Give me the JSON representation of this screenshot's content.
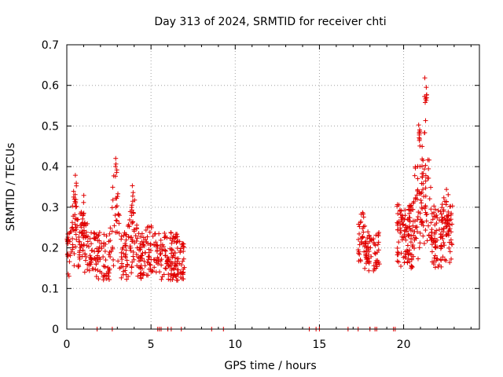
{
  "chart_data": {
    "type": "scatter",
    "title": "Day 313 of 2024, SRMTID for receiver chti",
    "xlabel": "GPS time / hours",
    "ylabel": "SRMTID / TECUs",
    "xlim": [
      0,
      24.5
    ],
    "ylim": [
      0,
      0.7
    ],
    "xticks": [
      0,
      5,
      10,
      15,
      20
    ],
    "xtick_labels": [
      "0",
      "5",
      "10",
      "15",
      "20"
    ],
    "yticks": [
      0,
      0.1,
      0.2,
      0.3,
      0.4,
      0.5,
      0.6,
      0.7
    ],
    "ytick_labels": [
      "0",
      "0.1",
      "0.2",
      "0.3",
      "0.4",
      "0.5",
      "0.6",
      "0.7"
    ],
    "grid": true,
    "marker": "+",
    "color": "#e00000",
    "clusters": [
      {
        "x_start": 0.0,
        "x_end": 7.0,
        "n": 520,
        "baseline": 0.18,
        "spread": 0.06
      },
      {
        "x_start": 17.3,
        "x_end": 18.6,
        "n": 90,
        "baseline": 0.19,
        "spread": 0.05
      },
      {
        "x_start": 19.6,
        "x_end": 22.9,
        "n": 330,
        "baseline": 0.23,
        "spread": 0.08
      }
    ],
    "peaks": [
      {
        "x": 0.5,
        "y": 0.36
      },
      {
        "x": 1.0,
        "y": 0.3
      },
      {
        "x": 2.9,
        "y": 0.43
      },
      {
        "x": 3.9,
        "y": 0.34
      },
      {
        "x": 4.9,
        "y": 0.21
      },
      {
        "x": 6.5,
        "y": 0.18
      },
      {
        "x": 17.5,
        "y": 0.27
      },
      {
        "x": 20.9,
        "y": 0.5
      },
      {
        "x": 21.3,
        "y": 0.62
      },
      {
        "x": 22.6,
        "y": 0.28
      }
    ],
    "zero_points": [
      1.8,
      2.7,
      5.4,
      5.5,
      5.6,
      6.0,
      6.2,
      6.8,
      8.6,
      9.3,
      14.4,
      14.8,
      15.0,
      16.7,
      17.3,
      18.0,
      18.3,
      18.4,
      19.4,
      19.5
    ]
  }
}
